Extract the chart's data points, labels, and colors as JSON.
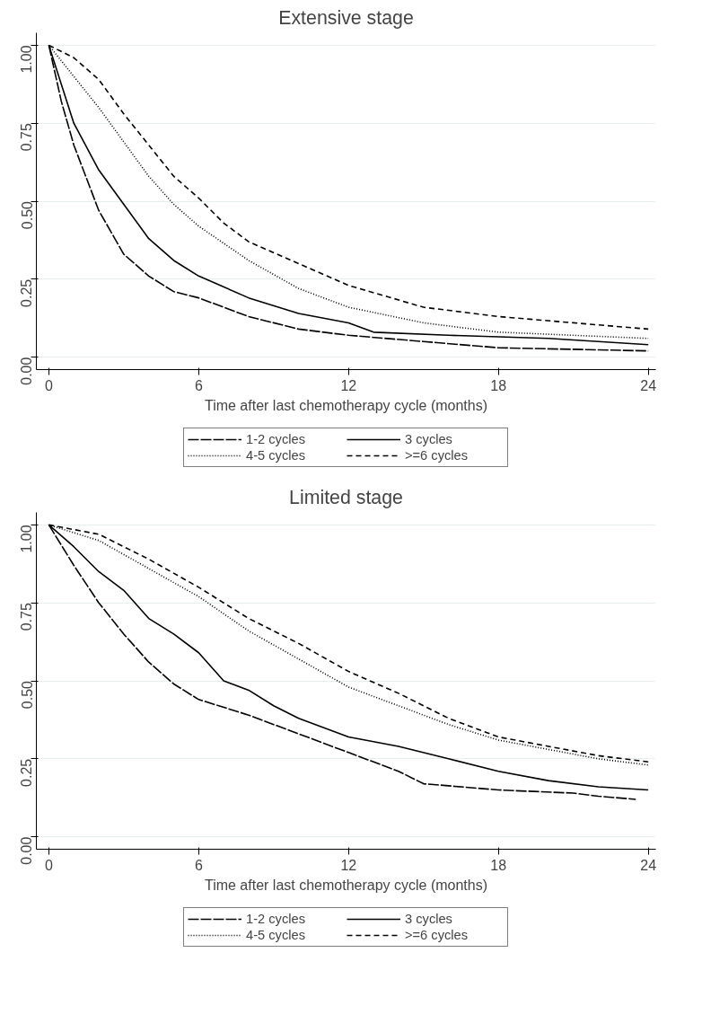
{
  "chart_data": [
    {
      "type": "line",
      "title": "Extensive stage",
      "xlabel": "Time after last chemotherapy cycle (months)",
      "xlim": [
        -0.5,
        24.3
      ],
      "ylim": [
        -0.04,
        1.04
      ],
      "xticks": [
        0,
        6,
        12,
        18,
        24
      ],
      "yticks": [
        {
          "value": 0,
          "label": "0.00"
        },
        {
          "value": 0.25,
          "label": "0.25"
        },
        {
          "value": 0.5,
          "label": "0.50"
        },
        {
          "value": 0.75,
          "label": "0.75"
        },
        {
          "value": 1,
          "label": "1.00"
        }
      ],
      "grid": "y",
      "legend": "bottom",
      "series": [
        {
          "name": "1-2 cycles",
          "color": "#000000",
          "line_style": "long dashed",
          "x": [
            0,
            0.5,
            1,
            2,
            3,
            4,
            5,
            6,
            8,
            10,
            12,
            15,
            18,
            24
          ],
          "values": [
            1,
            0.82,
            0.68,
            0.47,
            0.33,
            0.26,
            0.21,
            0.19,
            0.13,
            0.09,
            0.07,
            0.05,
            0.03,
            0.02
          ]
        },
        {
          "name": "3 cycles",
          "color": "#000000",
          "line_style": "solid",
          "x": [
            0,
            1,
            2,
            3,
            4,
            5,
            6,
            8,
            10,
            12,
            13,
            16,
            20,
            24
          ],
          "values": [
            1,
            0.75,
            0.6,
            0.49,
            0.38,
            0.31,
            0.26,
            0.19,
            0.14,
            0.11,
            0.08,
            0.07,
            0.06,
            0.04
          ]
        },
        {
          "name": "4-5 cycles",
          "color": "#000000",
          "line_style": "dotted",
          "x": [
            0,
            1,
            2,
            3,
            4,
            5,
            6,
            8,
            10,
            12,
            15,
            18,
            21,
            24
          ],
          "values": [
            1,
            0.9,
            0.8,
            0.69,
            0.58,
            0.49,
            0.42,
            0.31,
            0.22,
            0.16,
            0.11,
            0.08,
            0.07,
            0.06
          ]
        },
        {
          "name": ">=6 cycles",
          "color": "#000000",
          "line_style": "dashed",
          "x": [
            0,
            1,
            2,
            3,
            4,
            5,
            6,
            7,
            8,
            10,
            12,
            15,
            18,
            21,
            24
          ],
          "values": [
            1,
            0.96,
            0.89,
            0.78,
            0.68,
            0.58,
            0.51,
            0.43,
            0.37,
            0.3,
            0.23,
            0.16,
            0.13,
            0.11,
            0.09
          ]
        }
      ]
    },
    {
      "type": "line",
      "title": "Limited stage",
      "xlabel": "Time after last chemotherapy cycle (months)",
      "xlim": [
        -0.5,
        24.3
      ],
      "ylim": [
        -0.04,
        1.04
      ],
      "xticks": [
        0,
        6,
        12,
        18,
        24
      ],
      "yticks": [
        {
          "value": 0,
          "label": "0.00"
        },
        {
          "value": 0.25,
          "label": "0.25"
        },
        {
          "value": 0.5,
          "label": "0.50"
        },
        {
          "value": 0.75,
          "label": "0.75"
        },
        {
          "value": 1,
          "label": "1.00"
        }
      ],
      "grid": "y",
      "legend": "bottom",
      "series": [
        {
          "name": "1-2 cycles",
          "color": "#000000",
          "line_style": "long dashed",
          "x": [
            0,
            1,
            2,
            3,
            4,
            5,
            6,
            8,
            10,
            12,
            14,
            15,
            18,
            21,
            22,
            23.5
          ],
          "values": [
            1,
            0.87,
            0.75,
            0.65,
            0.56,
            0.49,
            0.44,
            0.39,
            0.33,
            0.27,
            0.21,
            0.17,
            0.15,
            0.14,
            0.13,
            0.12
          ]
        },
        {
          "name": "3 cycles",
          "color": "#000000",
          "line_style": "solid",
          "x": [
            0,
            1,
            2,
            3,
            4,
            5,
            6,
            7,
            8,
            9,
            10,
            12,
            14,
            16,
            18,
            20,
            22,
            24
          ],
          "values": [
            1,
            0.93,
            0.85,
            0.79,
            0.7,
            0.65,
            0.59,
            0.5,
            0.47,
            0.42,
            0.38,
            0.32,
            0.29,
            0.25,
            0.21,
            0.18,
            0.16,
            0.15
          ]
        },
        {
          "name": "4-5 cycles",
          "color": "#000000",
          "line_style": "dotted",
          "x": [
            0,
            2,
            4,
            6,
            8,
            10,
            12,
            14,
            16,
            18,
            20,
            22,
            24
          ],
          "values": [
            1,
            0.95,
            0.86,
            0.77,
            0.66,
            0.57,
            0.48,
            0.42,
            0.36,
            0.31,
            0.28,
            0.25,
            0.23
          ]
        },
        {
          "name": ">=6 cycles",
          "color": "#000000",
          "line_style": "dashed",
          "x": [
            0,
            2,
            4,
            6,
            8,
            10,
            12,
            14,
            16,
            18,
            20,
            22,
            24
          ],
          "values": [
            1,
            0.97,
            0.89,
            0.8,
            0.7,
            0.62,
            0.53,
            0.46,
            0.38,
            0.32,
            0.29,
            0.26,
            0.24
          ]
        }
      ]
    }
  ]
}
